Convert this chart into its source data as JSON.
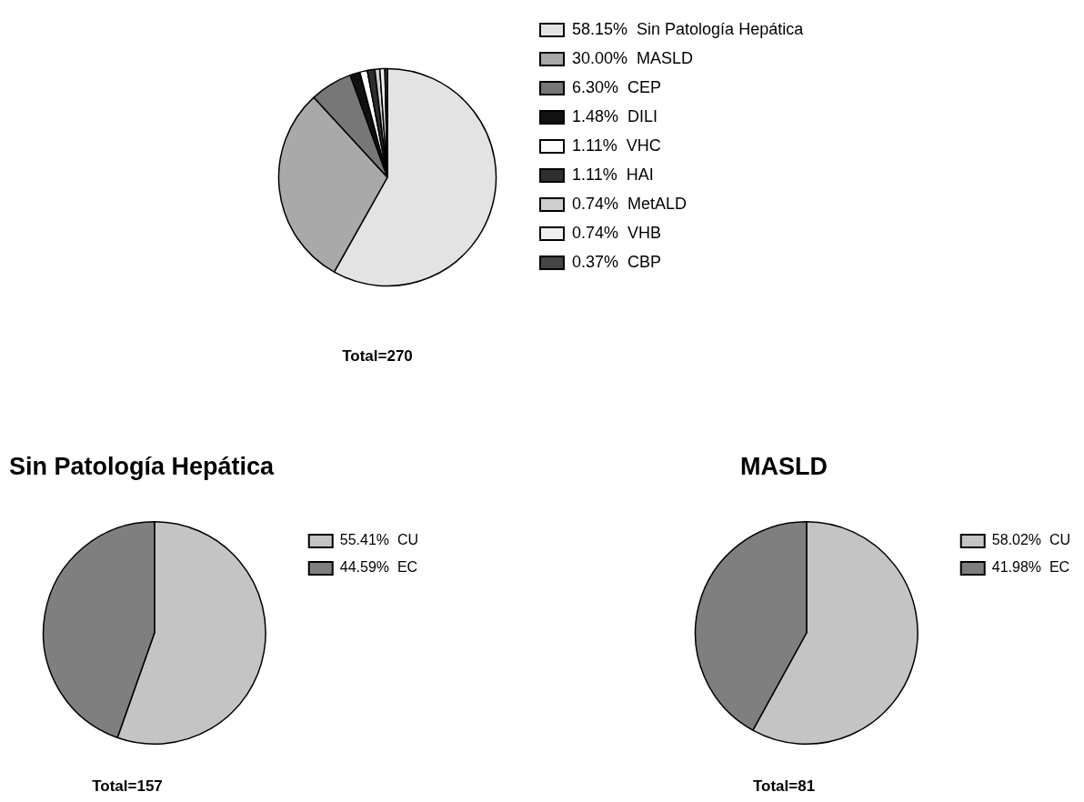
{
  "chart_data": [
    {
      "type": "pie",
      "categories": [
        "Sin Patología Hepática",
        "MASLD",
        "CEP",
        "DILI",
        "VHC",
        "HAI",
        "MetALD",
        "VHB",
        "CBP"
      ],
      "values": [
        58.15,
        30.0,
        6.3,
        1.48,
        1.11,
        1.11,
        0.74,
        0.74,
        0.37
      ],
      "value_labels": [
        "58.15%",
        "30.00%",
        "6.30%",
        "1.48%",
        "1.11%",
        "1.11%",
        "0.74%",
        "0.74%",
        "0.37%"
      ],
      "colors": [
        "#e3e3e3",
        "#a9a9a9",
        "#777777",
        "#111111",
        "#ffffff",
        "#2e2e2e",
        "#cfcfcf",
        "#efefef",
        "#444444"
      ],
      "legend": "right",
      "annotations": [
        "Total=270"
      ]
    },
    {
      "type": "pie",
      "title": "Sin Patología Hepática",
      "categories": [
        "CU",
        "EC"
      ],
      "values": [
        55.41,
        44.59
      ],
      "value_labels": [
        "55.41%",
        "44.59%"
      ],
      "colors": [
        "#c4c4c4",
        "#7f7f7f"
      ],
      "legend": "right",
      "annotations": [
        "Total=157"
      ]
    },
    {
      "type": "pie",
      "title": "MASLD",
      "categories": [
        "CU",
        "EC"
      ],
      "values": [
        58.02,
        41.98
      ],
      "value_labels": [
        "58.02%",
        "41.98%"
      ],
      "colors": [
        "#c4c4c4",
        "#7f7f7f"
      ],
      "legend": "right",
      "annotations": [
        "Total=81"
      ]
    }
  ]
}
